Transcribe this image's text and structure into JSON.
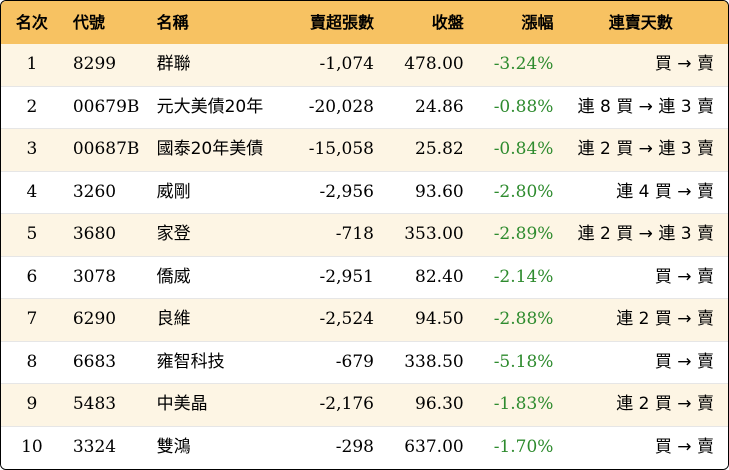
{
  "table": {
    "headers": {
      "rank": "名次",
      "code": "代號",
      "name": "名稱",
      "net_sell": "賣超張數",
      "close": "收盤",
      "change": "漲幅",
      "streak": "連賣天數"
    },
    "rows": [
      {
        "rank": "1",
        "code": "8299",
        "name": "群聯",
        "net_sell": "-1,074",
        "close": "478.00",
        "change": "-3.24%",
        "streak": "買 → 賣"
      },
      {
        "rank": "2",
        "code": "00679B",
        "name": "元大美債20年",
        "net_sell": "-20,028",
        "close": "24.86",
        "change": "-0.88%",
        "streak": "連 8 買 → 連 3 賣"
      },
      {
        "rank": "3",
        "code": "00687B",
        "name": "國泰20年美債",
        "net_sell": "-15,058",
        "close": "25.82",
        "change": "-0.84%",
        "streak": "連 2 買 → 連 3 賣"
      },
      {
        "rank": "4",
        "code": "3260",
        "name": "威剛",
        "net_sell": "-2,956",
        "close": "93.60",
        "change": "-2.80%",
        "streak": "連 4 買 → 賣"
      },
      {
        "rank": "5",
        "code": "3680",
        "name": "家登",
        "net_sell": "-718",
        "close": "353.00",
        "change": "-2.89%",
        "streak": "連 2 買 → 連 3 賣"
      },
      {
        "rank": "6",
        "code": "3078",
        "name": "僑威",
        "net_sell": "-2,951",
        "close": "82.40",
        "change": "-2.14%",
        "streak": "買 → 賣"
      },
      {
        "rank": "7",
        "code": "6290",
        "name": "良維",
        "net_sell": "-2,524",
        "close": "94.50",
        "change": "-2.88%",
        "streak": "連 2 買 → 賣"
      },
      {
        "rank": "8",
        "code": "6683",
        "name": "雍智科技",
        "net_sell": "-679",
        "close": "338.50",
        "change": "-5.18%",
        "streak": "買 → 賣"
      },
      {
        "rank": "9",
        "code": "5483",
        "name": "中美晶",
        "net_sell": "-2,176",
        "close": "96.30",
        "change": "-1.83%",
        "streak": "連 2 買 → 賣"
      },
      {
        "rank": "10",
        "code": "3324",
        "name": "雙鴻",
        "net_sell": "-298",
        "close": "637.00",
        "change": "-1.70%",
        "streak": "買 → 賣"
      }
    ]
  },
  "colors": {
    "header_bg": "#f7c262",
    "odd_row_bg": "#fdf5e4",
    "negative_change": "#2e8b2e"
  }
}
